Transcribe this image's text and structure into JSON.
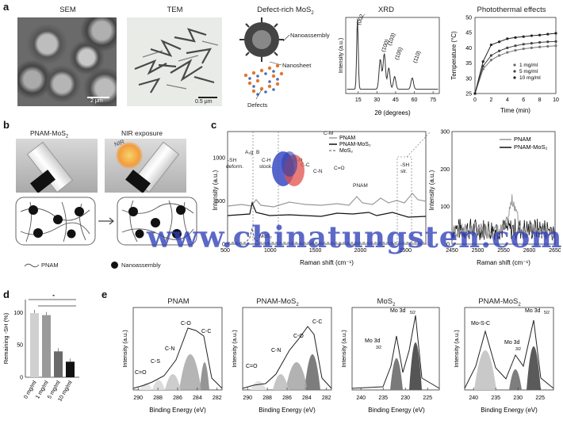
{
  "panel_a": {
    "label": "a",
    "sem": {
      "title": "SEM",
      "scale": "2 μm"
    },
    "tem": {
      "title": "TEM",
      "scale": "0.5 μm"
    },
    "schematic": {
      "title_main": "Defect-rich MoS",
      "title_sub": "2",
      "nanoassembly": "Nanoassembly",
      "nanosheet": "Nanosheet",
      "defects": "Defects"
    },
    "xrd": {
      "title": "XRD",
      "ylabel": "Intensity (a.u.)",
      "xlabel": "2θ (degrees)",
      "ticks": [
        "15",
        "30",
        "45",
        "60",
        "75"
      ],
      "peaks": [
        "(002)",
        "(100)",
        "(103)",
        "(105)",
        "(110)"
      ]
    },
    "photothermal": {
      "title": "Photothermal effects",
      "ylabel": "Temperature (°C)",
      "xlabel": "Time (min)",
      "yticks": [
        "25",
        "30",
        "35",
        "40",
        "45",
        "50"
      ],
      "xticks": [
        "0",
        "2",
        "4",
        "6",
        "8",
        "10"
      ],
      "legend": [
        "1 mg/ml",
        "5 mg/ml",
        "10 mg/ml"
      ]
    }
  },
  "panel_b": {
    "label": "b",
    "left": "PNAM-MoS",
    "left_sub": "2",
    "right": "NIR exposure",
    "nir": "NIR",
    "legend_pnam": "PNAM",
    "legend_nano": "Nanoassembly"
  },
  "panel_c": {
    "label": "c",
    "ylabel": "Intensity (a.u.)",
    "xlabel": "Raman shift (cm⁻¹)",
    "yticks": [
      "0",
      "500",
      "1000"
    ],
    "xticks": [
      "500",
      "1000",
      "1500",
      "2000",
      "2500"
    ],
    "legend": [
      "PNAM",
      "PNAM-MoS₂",
      "MoS₂"
    ],
    "annotations": {
      "a1g": "A₁g",
      "b": "B",
      "shdeform": "-SH",
      "shdeform2": "deform.",
      "c1": "C-H",
      "c2": "stock.",
      "cm": "C-M",
      "cn": "C-N",
      "cc": "C-C",
      "co": "C=O",
      "cn2": "C-N",
      "pnam": "PNAM",
      "sh": "-SH",
      "sh2": "str.",
      "mos2": "MoS₂"
    },
    "right": {
      "ylabel": "Intensity (a.u.)",
      "xlabel": "Raman shift (cm⁻¹)",
      "yticks": [
        "0",
        "100",
        "200",
        "300"
      ],
      "xticks": [
        "2450",
        "2500",
        "2550",
        "2600",
        "2650"
      ],
      "legend": [
        "PNAM",
        "PNAM-MoS₂"
      ]
    }
  },
  "panel_d": {
    "label": "d",
    "ylabel": "Remaining -SH (%)",
    "yticks": [
      "0",
      "50",
      "100"
    ],
    "categories": [
      "0 mg/ml",
      "1 mg/ml",
      "5 mg/ml",
      "10 mg/ml"
    ],
    "star": "*"
  },
  "panel_e": {
    "label": "e",
    "xlabel": "Binding Energy (eV)",
    "ylabel": "Intensity (a.u.)",
    "p1": {
      "title": "PNAM",
      "peaks": [
        "C-C",
        "C-O",
        "C-N",
        "C-S",
        "C=O"
      ],
      "xticks": [
        "290",
        "288",
        "286",
        "284",
        "282"
      ]
    },
    "p2": {
      "title": "PNAM-MoS",
      "title_sub": "2",
      "peaks": [
        "C-C",
        "C-O",
        "C-N",
        "C=O"
      ],
      "xticks": [
        "290",
        "288",
        "286",
        "284",
        "282"
      ]
    },
    "p3": {
      "title": "MoS",
      "title_sub": "2",
      "peaks": [
        "Mo 3d",
        "5/2",
        "Mo 3d",
        "3/2"
      ],
      "xticks": [
        "240",
        "235",
        "230",
        "225"
      ]
    },
    "p4": {
      "title": "PNAM-MoS",
      "title_sub": "2",
      "peaks": [
        "Mo 3d",
        "5/2",
        "Mo-S-C",
        "Mo 3d",
        "3/2"
      ],
      "xticks": [
        "240",
        "235",
        "230",
        "225"
      ]
    }
  },
  "watermark": "www.chinatungsten.com",
  "chart_data": [
    {
      "type": "line",
      "title": "XRD",
      "xlabel": "2θ (degrees)",
      "ylabel": "Intensity (a.u.)",
      "xlim": [
        5,
        80
      ],
      "series": [
        {
          "name": "",
          "x": [
            14.4,
            32.7,
            35.9,
            39.5,
            44.2,
            58.3
          ],
          "values": [
            1.0,
            0.42,
            0.5,
            0.3,
            0.18,
            0.16
          ]
        }
      ]
    },
    {
      "type": "line",
      "title": "Photothermal effects",
      "xlabel": "Time (min)",
      "ylabel": "Temperature (°C)",
      "xlim": [
        0,
        10
      ],
      "ylim": [
        25,
        50
      ],
      "x": [
        0,
        1,
        2,
        3,
        4,
        5,
        6,
        7,
        8,
        9,
        10
      ],
      "series": [
        {
          "name": "1 mg/ml",
          "values": [
            25,
            33,
            36,
            37.5,
            38.5,
            39.2,
            39.7,
            40,
            40.3,
            40.5,
            40.7
          ]
        },
        {
          "name": "5 mg/ml",
          "values": [
            25,
            34,
            37.5,
            39,
            40,
            40.7,
            41.2,
            41.5,
            41.8,
            42,
            42.1
          ]
        },
        {
          "name": "10 mg/ml",
          "values": [
            25,
            35.5,
            41,
            42,
            43,
            43.4,
            43.7,
            44,
            44.2,
            44.5,
            44.8
          ]
        }
      ]
    },
    {
      "type": "bar",
      "xlabel": "",
      "ylabel": "Remaining -SH (%)",
      "ylim": [
        0,
        120
      ],
      "categories": [
        "0 mg/ml",
        "1 mg/ml",
        "5 mg/ml",
        "10 mg/ml"
      ],
      "values": [
        99,
        96,
        40,
        24
      ]
    }
  ]
}
